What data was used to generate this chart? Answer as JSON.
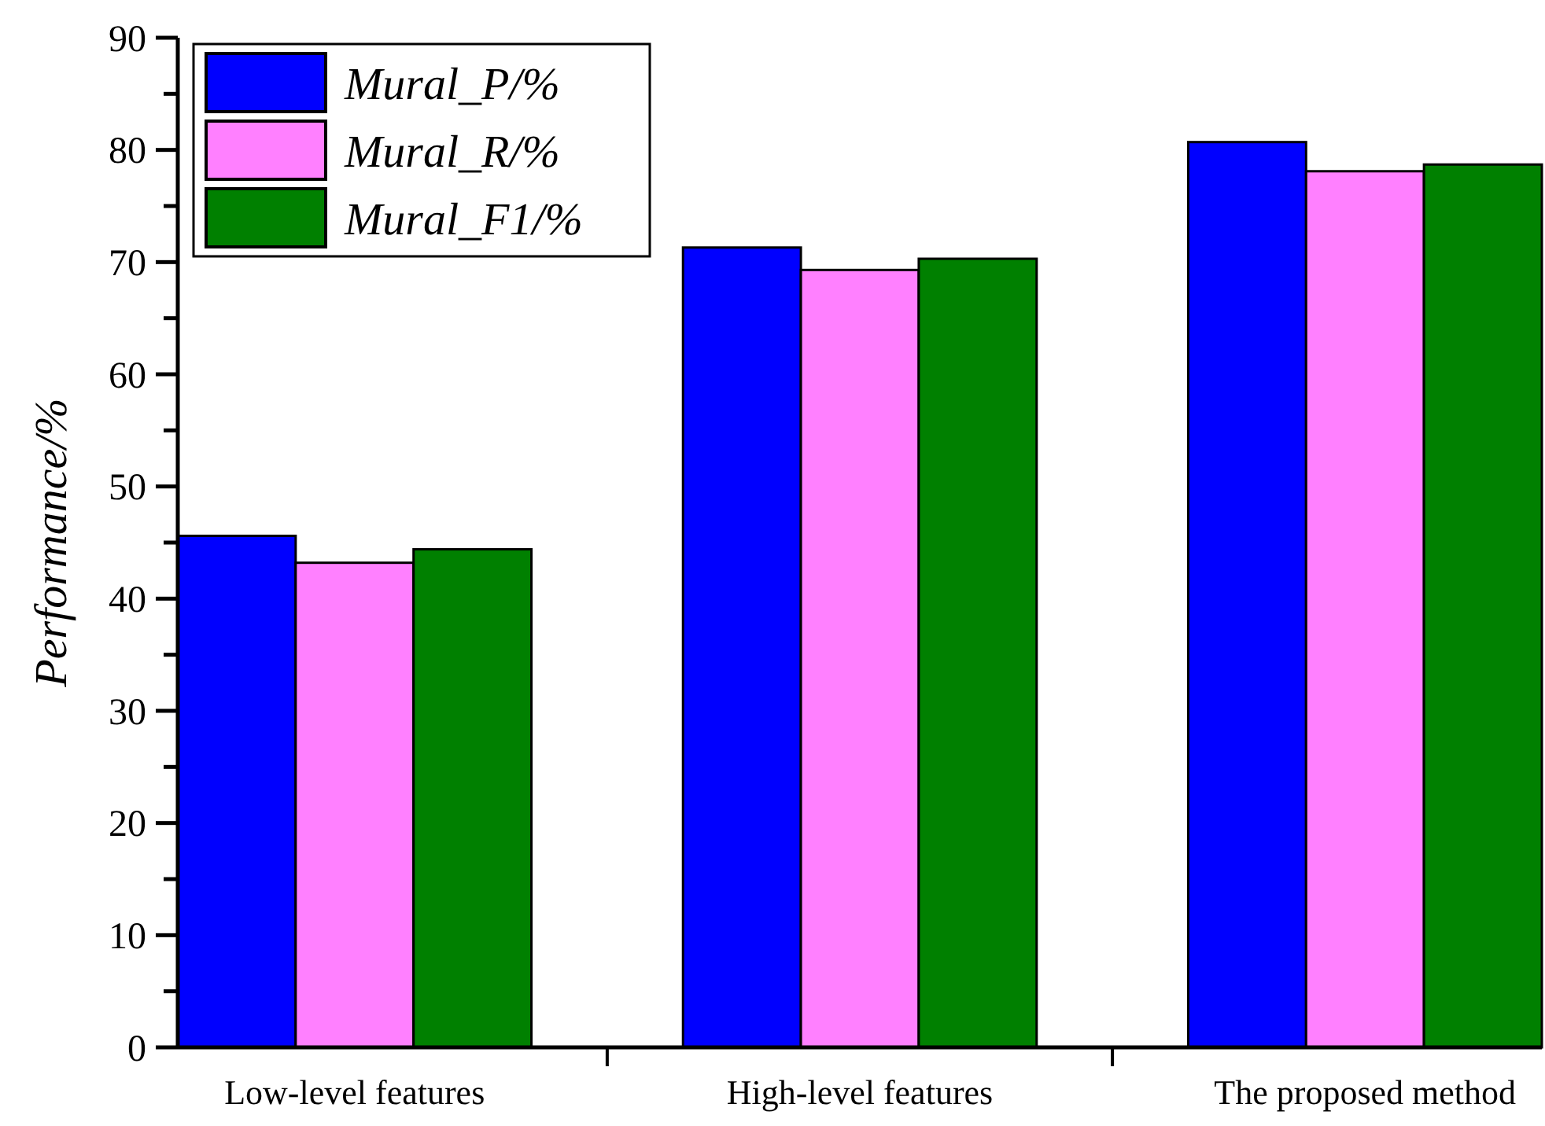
{
  "chart_data": {
    "type": "bar",
    "ylabel": "Performance/%",
    "categories": [
      "Low-level features",
      "High-level features",
      "The proposed method"
    ],
    "series": [
      {
        "name": "Mural_P/%",
        "color": "#0000ff",
        "values": [
          45.6,
          71.3,
          80.7
        ]
      },
      {
        "name": "Mural_R/%",
        "color": "#ff80ff",
        "values": [
          43.2,
          69.3,
          78.1
        ]
      },
      {
        "name": "Mural_F1/%",
        "color": "#008000",
        "values": [
          44.4,
          70.3,
          78.7
        ]
      }
    ],
    "ylim": [
      0,
      90
    ],
    "yticks": [
      0,
      {
        "value": 5,
        "label": null
      },
      10,
      {
        "value": 15,
        "label": null
      },
      20,
      {
        "value": 25,
        "label": null
      },
      30,
      {
        "value": 35,
        "label": null
      },
      40,
      {
        "value": 45,
        "label": null
      },
      50,
      {
        "value": 55,
        "label": null
      },
      60,
      {
        "value": 65,
        "label": null
      },
      70,
      {
        "value": 75,
        "label": null
      },
      80,
      {
        "value": 85,
        "label": null
      },
      90
    ],
    "legend": "top left",
    "grid": false
  }
}
